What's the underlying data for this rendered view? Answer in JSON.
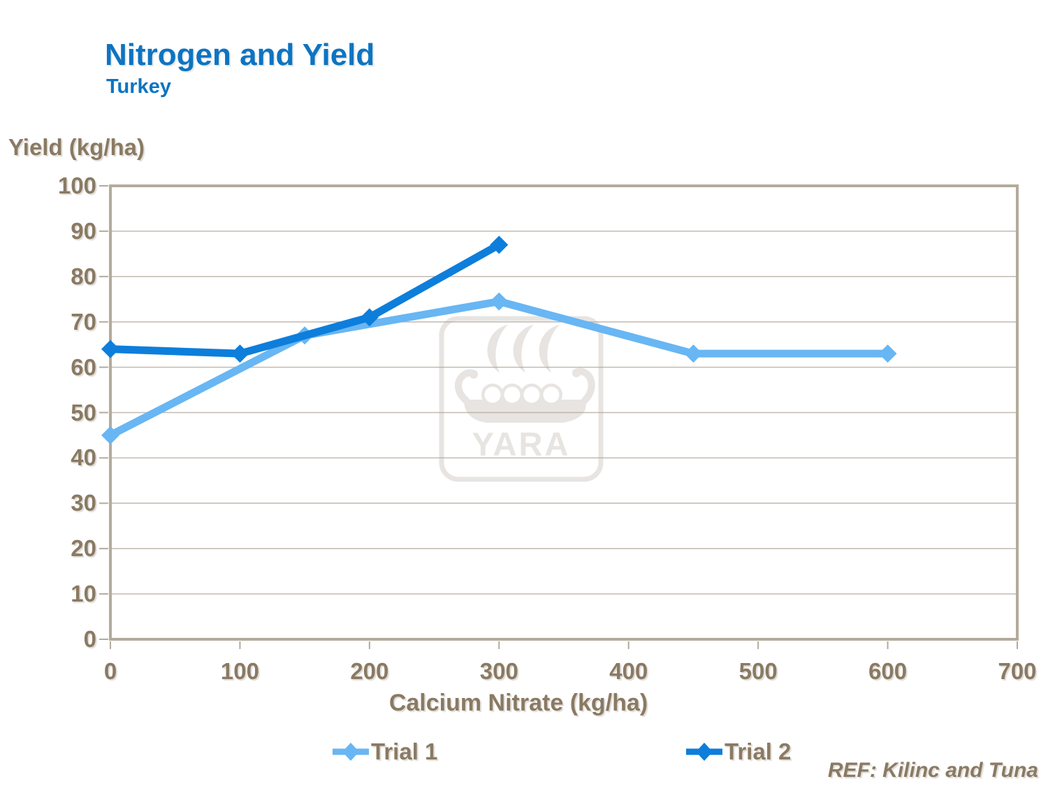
{
  "slide": {
    "title": "Nitrogen and Yield",
    "subtitle": "Turkey",
    "reference": "REF: Kilinc and Tuna",
    "watermark_text": "YARA"
  },
  "colors": {
    "title_blue": "#0d74c2",
    "axis_text_brown": "#8a7a63",
    "grid": "#b4aa9c",
    "watermark_gray": "#e7e4e1",
    "trial1": "#68b6f3",
    "trial2": "#0d7edb"
  },
  "chart_data": {
    "type": "line",
    "title": "Nitrogen and Yield",
    "subtitle": "Turkey",
    "xlabel": "Calcium Nitrate (kg/ha)",
    "ylabel": "Yield (kg/ha)",
    "xlim": [
      0,
      700
    ],
    "ylim": [
      0,
      100
    ],
    "xticks": [
      0,
      100,
      200,
      300,
      400,
      500,
      600,
      700
    ],
    "yticks": [
      0,
      10,
      20,
      30,
      40,
      50,
      60,
      70,
      80,
      90,
      100
    ],
    "grid": "horizontal",
    "legend_position": "bottom",
    "series": [
      {
        "name": "Trial 1",
        "color": "#68b6f3",
        "marker": "diamond",
        "x": [
          0,
          150,
          300,
          450,
          600
        ],
        "y": [
          45,
          67,
          74.5,
          63,
          63
        ]
      },
      {
        "name": "Trial 2",
        "color": "#0d7edb",
        "marker": "diamond",
        "x": [
          0,
          100,
          200,
          300
        ],
        "y": [
          64,
          63,
          71,
          87
        ]
      }
    ]
  }
}
